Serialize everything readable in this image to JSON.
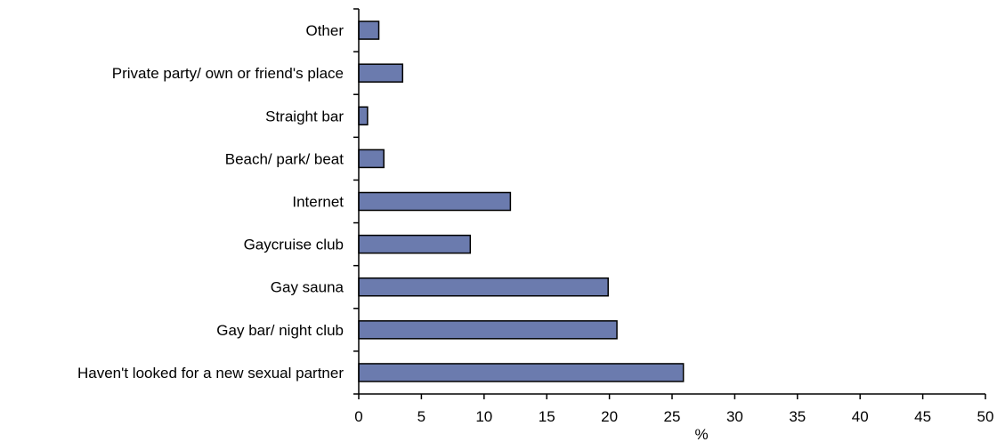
{
  "chart_data": {
    "type": "bar",
    "orientation": "horizontal",
    "categories": [
      "Other",
      "Private party/ own or friend's place",
      "Straight bar",
      "Beach/ park/ beat",
      "Internet",
      "Gaycruise club",
      "Gay sauna",
      "Gay bar/ night club",
      "Haven't looked for a new sexual partner"
    ],
    "values": [
      1.6,
      3.5,
      0.7,
      2.0,
      12.1,
      8.9,
      19.9,
      20.6,
      25.9
    ],
    "xlim": [
      0,
      50
    ],
    "xticks": [
      "0",
      "5",
      "10",
      "15",
      "20",
      "25",
      "30",
      "35",
      "40",
      "45",
      "50"
    ],
    "xlabel": "%",
    "ylabel": "",
    "title": "",
    "grid": false,
    "legend": "none",
    "bar_color": "#6B7BAE",
    "bar_edge_color": "#000000"
  }
}
